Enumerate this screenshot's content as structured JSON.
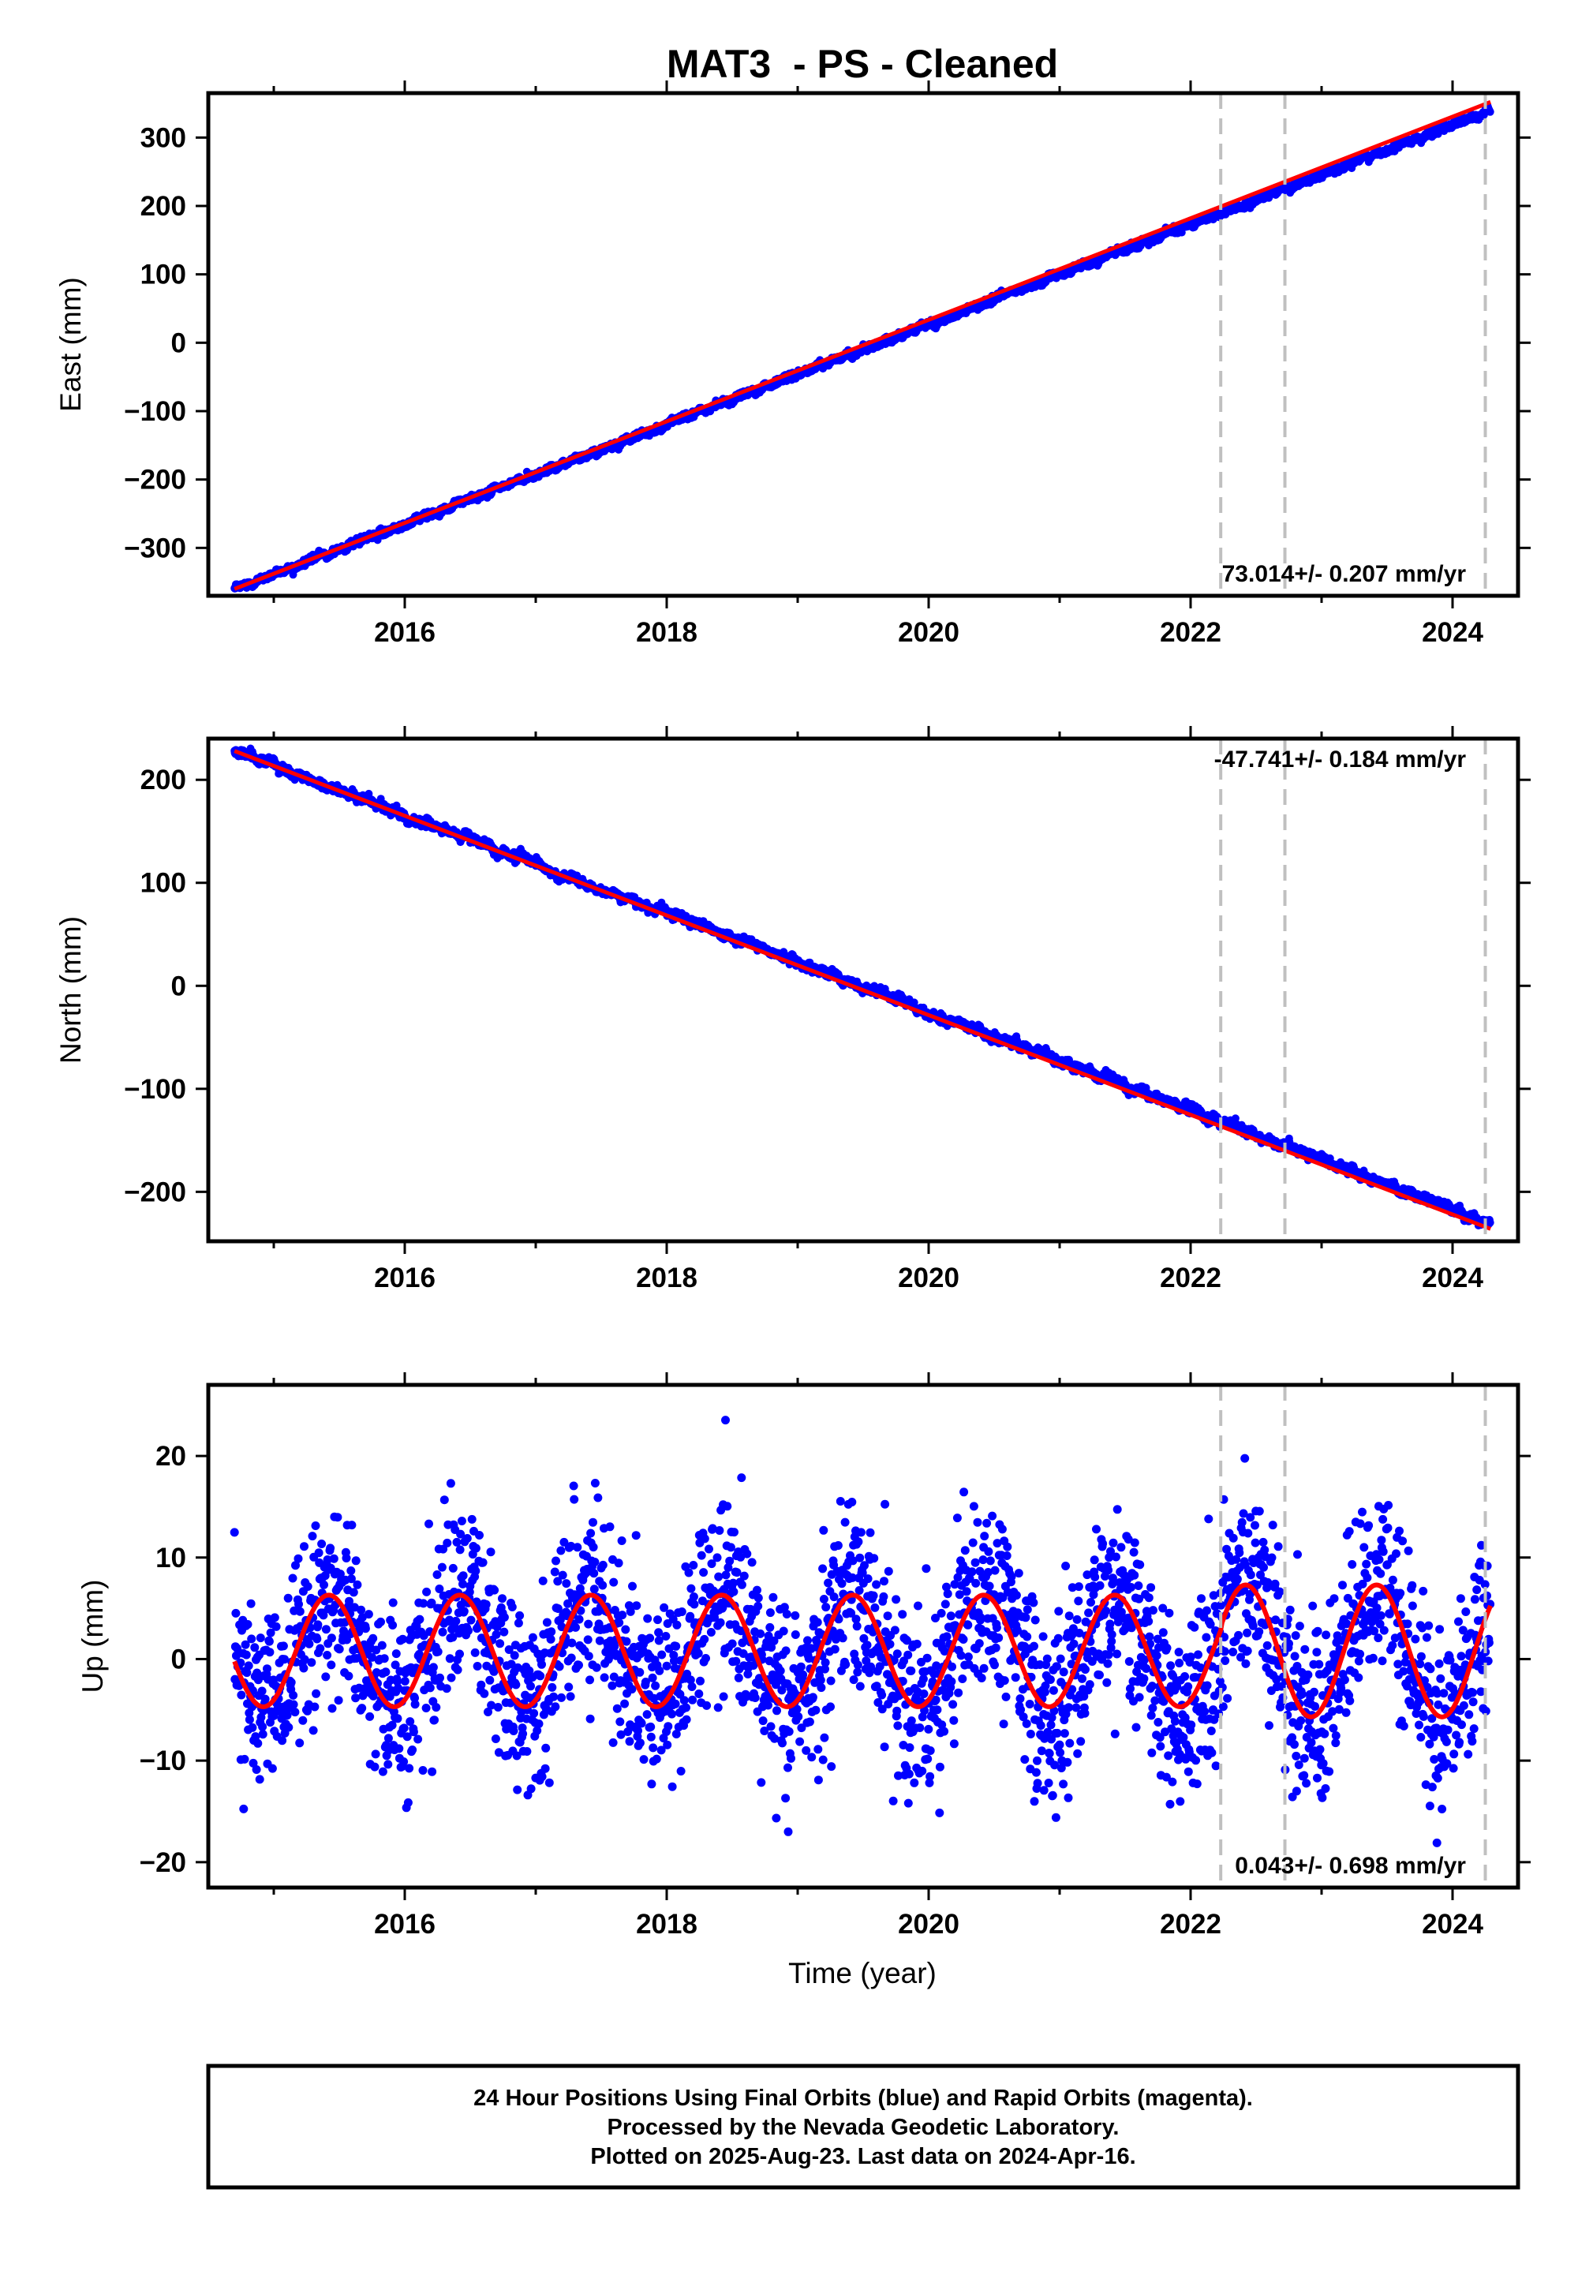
{
  "figure_title": "MAT3  - PS - Cleaned",
  "caption_lines": [
    "24 Hour Positions Using Final Orbits (blue) and Rapid Orbits (magenta).",
    "Processed by the Nevada Geodetic Laboratory.",
    "Plotted on 2025-Aug-23. Last data on 2024-Apr-16."
  ],
  "colors": {
    "points": "#0000ff",
    "fit": "#ff0000",
    "event_lines": "#c0c0c0",
    "frame": "#000000"
  },
  "chart_data": [
    {
      "type": "scatter",
      "name": "east",
      "ylabel": "East (mm)",
      "xlim": [
        2014.5,
        2024.5
      ],
      "ylim": [
        -370,
        365
      ],
      "xticks": [
        2016,
        2018,
        2020,
        2022,
        2024
      ],
      "xtick_labels": [
        "2016",
        "2018",
        "2020",
        "2022",
        "2024"
      ],
      "yticks": [
        -300,
        -200,
        -100,
        0,
        100,
        200,
        300
      ],
      "ytick_labels": [
        "−300",
        "−200",
        "−100",
        "0",
        "100",
        "200",
        "300"
      ],
      "rate_label": "73.014+/- 0.207 mm/yr",
      "rate_label_position": "bottom-right",
      "event_lines_x": [
        2022.23,
        2022.72,
        2024.25
      ],
      "data_start": 2014.7,
      "data_end": 2024.29,
      "start_value": -360,
      "end_value": 352,
      "trend_mm_per_yr": 73.014,
      "seasonal_amplitude_mm": 0,
      "point_scatter_mm": 2,
      "fit_line": {
        "x": [
          2014.7,
          2024.29
        ],
        "y": [
          -360,
          352
        ]
      }
    },
    {
      "type": "scatter",
      "name": "north",
      "ylabel": "North (mm)",
      "xlim": [
        2014.5,
        2024.5
      ],
      "ylim": [
        -248,
        240
      ],
      "xticks": [
        2016,
        2018,
        2020,
        2022,
        2024
      ],
      "xtick_labels": [
        "2016",
        "2018",
        "2020",
        "2022",
        "2024"
      ],
      "yticks": [
        -200,
        -100,
        0,
        100,
        200
      ],
      "ytick_labels": [
        "−200",
        "−100",
        "0",
        "100",
        "200"
      ],
      "rate_label": "-47.741+/- 0.184 mm/yr",
      "rate_label_position": "top-right",
      "event_lines_x": [
        2022.23,
        2022.72,
        2024.25
      ],
      "data_start": 2014.7,
      "data_end": 2024.29,
      "start_value": 228,
      "end_value": -236,
      "trend_mm_per_yr": -47.741,
      "seasonal_amplitude_mm": 0,
      "point_scatter_mm": 1.5,
      "fit_line": {
        "x": [
          2014.7,
          2024.29
        ],
        "y": [
          228,
          -236
        ]
      }
    },
    {
      "type": "scatter",
      "name": "up",
      "ylabel": "Up (mm)",
      "xlabel": "Time (year)",
      "xlim": [
        2014.5,
        2024.5
      ],
      "ylim": [
        -22.5,
        27
      ],
      "xticks": [
        2016,
        2018,
        2020,
        2022,
        2024
      ],
      "xtick_labels": [
        "2016",
        "2018",
        "2020",
        "2022",
        "2024"
      ],
      "yticks": [
        -20,
        -10,
        0,
        10,
        20
      ],
      "ytick_labels": [
        "−20",
        "−10",
        "0",
        "10",
        "20"
      ],
      "rate_label": "0.043+/- 0.698 mm/yr",
      "rate_label_position": "bottom-right",
      "event_lines_x": [
        2022.23,
        2022.72,
        2024.25
      ],
      "data_start": 2014.7,
      "data_end": 2024.29,
      "trend_mm_per_yr": 0.043,
      "seasonal_amplitude_mm": 5.5,
      "seasonal_peak_phase_year": 0.42,
      "point_scatter_mm": 4.5,
      "fit_line_note": "annual sinusoid, peaks ~+6 mm mid-year, troughs ~-4.5 mm; larger amplitude after 2022.23 (peak ~+9)"
    }
  ]
}
